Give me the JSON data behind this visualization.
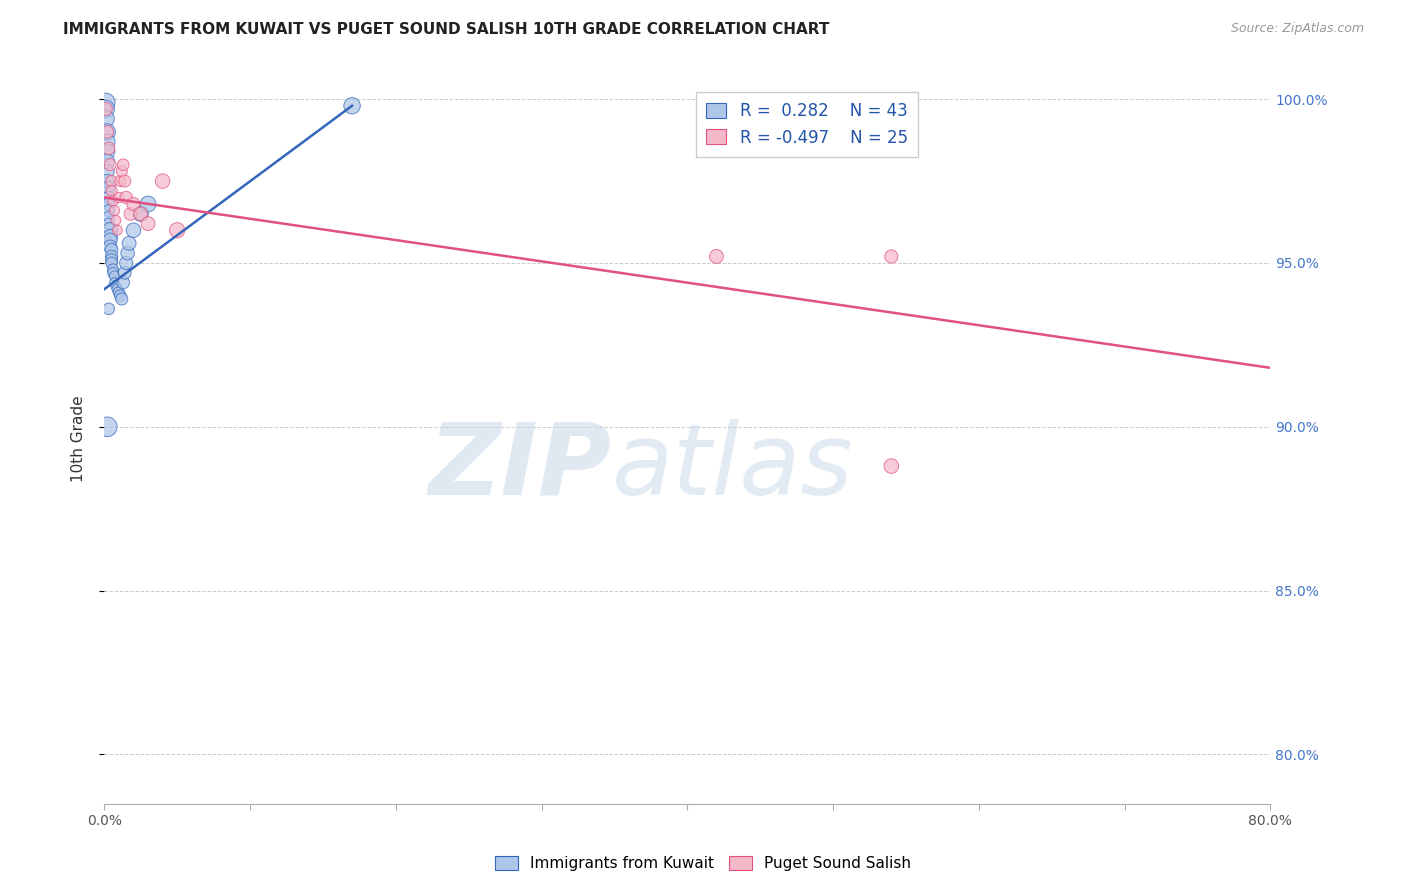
{
  "title": "IMMIGRANTS FROM KUWAIT VS PUGET SOUND SALISH 10TH GRADE CORRELATION CHART",
  "source": "Source: ZipAtlas.com",
  "ylabel": "10th Grade",
  "xlim": [
    0.0,
    0.8
  ],
  "ylim": [
    0.785,
    1.008
  ],
  "xticks": [
    0.0,
    0.1,
    0.2,
    0.3,
    0.4,
    0.5,
    0.6,
    0.7,
    0.8
  ],
  "xticklabels": [
    "0.0%",
    "",
    "",
    "",
    "",
    "",
    "",
    "",
    "80.0%"
  ],
  "yticks": [
    0.8,
    0.85,
    0.9,
    0.95,
    1.0
  ],
  "yticklabels_right": [
    "80.0%",
    "85.0%",
    "90.0%",
    "95.0%",
    "100.0%"
  ],
  "legend_blue_r": "0.282",
  "legend_blue_n": "43",
  "legend_pink_r": "-0.497",
  "legend_pink_n": "25",
  "blue_fill": "#aec6e8",
  "blue_edge": "#3366bb",
  "pink_fill": "#f4b8c8",
  "pink_edge": "#e05080",
  "blue_points": [
    [
      0.001,
      0.999
    ],
    [
      0.001,
      0.997
    ],
    [
      0.001,
      0.994
    ],
    [
      0.002,
      0.99
    ],
    [
      0.002,
      0.987
    ],
    [
      0.002,
      0.984
    ],
    [
      0.002,
      0.981
    ],
    [
      0.002,
      0.978
    ],
    [
      0.002,
      0.975
    ],
    [
      0.003,
      0.973
    ],
    [
      0.003,
      0.97
    ],
    [
      0.003,
      0.968
    ],
    [
      0.003,
      0.966
    ],
    [
      0.003,
      0.964
    ],
    [
      0.003,
      0.962
    ],
    [
      0.004,
      0.96
    ],
    [
      0.004,
      0.958
    ],
    [
      0.004,
      0.957
    ],
    [
      0.004,
      0.955
    ],
    [
      0.005,
      0.954
    ],
    [
      0.005,
      0.952
    ],
    [
      0.005,
      0.951
    ],
    [
      0.005,
      0.95
    ],
    [
      0.006,
      0.948
    ],
    [
      0.006,
      0.947
    ],
    [
      0.007,
      0.946
    ],
    [
      0.007,
      0.944
    ],
    [
      0.008,
      0.943
    ],
    [
      0.009,
      0.942
    ],
    [
      0.01,
      0.941
    ],
    [
      0.011,
      0.94
    ],
    [
      0.012,
      0.939
    ],
    [
      0.013,
      0.944
    ],
    [
      0.014,
      0.947
    ],
    [
      0.015,
      0.95
    ],
    [
      0.016,
      0.953
    ],
    [
      0.017,
      0.956
    ],
    [
      0.02,
      0.96
    ],
    [
      0.025,
      0.965
    ],
    [
      0.03,
      0.968
    ],
    [
      0.002,
      0.9
    ],
    [
      0.17,
      0.998
    ],
    [
      0.003,
      0.936
    ]
  ],
  "blue_sizes": [
    180,
    160,
    150,
    140,
    130,
    120,
    110,
    100,
    95,
    90,
    85,
    80,
    75,
    70,
    65,
    120,
    110,
    100,
    90,
    85,
    80,
    75,
    70,
    65,
    60,
    55,
    50,
    55,
    60,
    65,
    70,
    75,
    80,
    85,
    90,
    95,
    100,
    110,
    120,
    130,
    200,
    140,
    70
  ],
  "pink_points": [
    [
      0.001,
      0.997
    ],
    [
      0.002,
      0.99
    ],
    [
      0.003,
      0.985
    ],
    [
      0.004,
      0.98
    ],
    [
      0.005,
      0.975
    ],
    [
      0.005,
      0.972
    ],
    [
      0.006,
      0.969
    ],
    [
      0.007,
      0.966
    ],
    [
      0.008,
      0.963
    ],
    [
      0.009,
      0.96
    ],
    [
      0.01,
      0.97
    ],
    [
      0.011,
      0.975
    ],
    [
      0.012,
      0.978
    ],
    [
      0.013,
      0.98
    ],
    [
      0.014,
      0.975
    ],
    [
      0.015,
      0.97
    ],
    [
      0.018,
      0.965
    ],
    [
      0.02,
      0.968
    ],
    [
      0.025,
      0.965
    ],
    [
      0.03,
      0.962
    ],
    [
      0.04,
      0.975
    ],
    [
      0.05,
      0.96
    ],
    [
      0.42,
      0.952
    ],
    [
      0.54,
      0.952
    ],
    [
      0.54,
      0.888
    ]
  ],
  "pink_sizes": [
    90,
    85,
    80,
    75,
    70,
    65,
    60,
    55,
    50,
    50,
    55,
    60,
    65,
    70,
    75,
    80,
    85,
    90,
    95,
    100,
    110,
    120,
    100,
    90,
    110
  ],
  "blue_line": [
    [
      0.0,
      0.942
    ],
    [
      0.17,
      0.998
    ]
  ],
  "pink_line": [
    [
      0.0,
      0.97
    ],
    [
      0.8,
      0.918
    ]
  ],
  "watermark_zip": "ZIP",
  "watermark_atlas": "atlas",
  "bg_color": "#ffffff",
  "grid_color": "#cccccc",
  "title_fontsize": 11,
  "source_fontsize": 9,
  "legend_fontsize": 12,
  "axis_label_fontsize": 11,
  "tick_fontsize": 10
}
